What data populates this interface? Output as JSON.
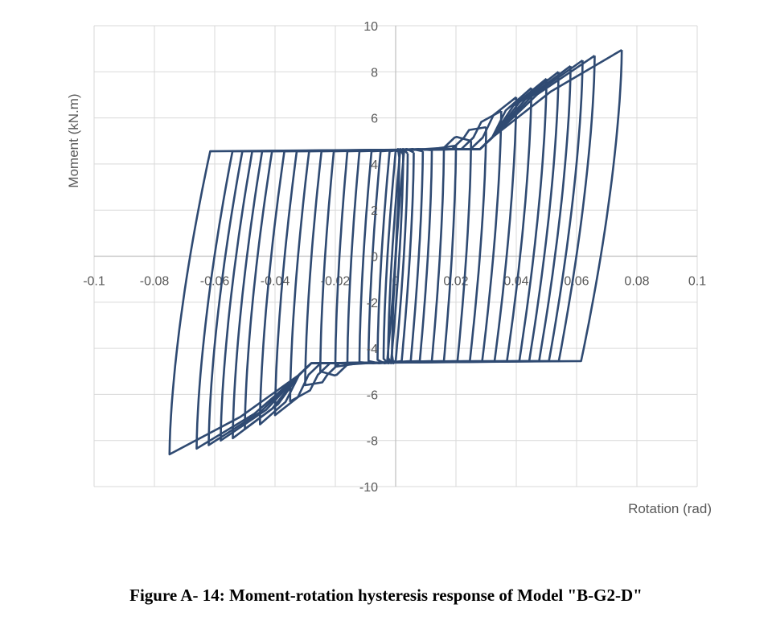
{
  "caption": "Figure A- 14: Moment-rotation hysteresis response of Model \"B-G2-D\"",
  "chart_data": {
    "type": "line",
    "title": "",
    "xlabel": "Rotation (rad)",
    "ylabel": "Moment (kN.m)",
    "xlim": [
      -0.1,
      0.1
    ],
    "ylim": [
      -10,
      10
    ],
    "grid": true,
    "legend": "none",
    "x_ticks": [
      "-0.1",
      "-0.08",
      "-0.06",
      "-0.04",
      "-0.02",
      "0",
      "0.02",
      "0.04",
      "0.06",
      "0.08",
      "0.1"
    ],
    "y_ticks": [
      "10",
      "8",
      "6",
      "4",
      "2",
      "0",
      "-2",
      "-4",
      "-6",
      "-8",
      "-10"
    ],
    "line_color": "#2f4a72",
    "loops": [
      {
        "amp": 0.0012,
        "mpos": 4.3,
        "mneg": -4.3
      },
      {
        "amp": 0.0025,
        "mpos": 4.4,
        "mneg": -4.4
      },
      {
        "amp": 0.004,
        "mpos": 4.45,
        "mneg": -4.45
      },
      {
        "amp": 0.006,
        "mpos": 4.5,
        "mneg": -4.5
      },
      {
        "amp": 0.009,
        "mpos": 4.55,
        "mneg": -4.55
      },
      {
        "amp": 0.012,
        "mpos": 4.6,
        "mneg": -4.6
      },
      {
        "amp": 0.016,
        "mpos": 4.7,
        "mneg": -4.7
      },
      {
        "amp": 0.02,
        "mpos": 4.8,
        "mneg": -4.8
      },
      {
        "amp": 0.025,
        "mpos": 5.0,
        "mneg": -5.0
      },
      {
        "amp": 0.03,
        "mpos": 5.6,
        "mneg": -5.6
      },
      {
        "amp": 0.035,
        "mpos": 6.3,
        "mneg": -6.3
      },
      {
        "amp": 0.04,
        "mpos": 6.9,
        "mneg": -6.9
      },
      {
        "amp": 0.045,
        "mpos": 7.3,
        "mneg": -7.3
      },
      {
        "amp": 0.05,
        "mpos": 7.7,
        "mneg": -7.5
      },
      {
        "amp": 0.054,
        "mpos": 8.0,
        "mneg": -7.9
      },
      {
        "amp": 0.058,
        "mpos": 8.25,
        "mneg": -8.0
      },
      {
        "amp": 0.062,
        "mpos": 8.5,
        "mneg": -8.2
      },
      {
        "amp": 0.066,
        "mpos": 8.7,
        "mneg": -8.35
      },
      {
        "amp": 0.075,
        "mpos": 8.95,
        "mneg": -8.6
      }
    ]
  }
}
